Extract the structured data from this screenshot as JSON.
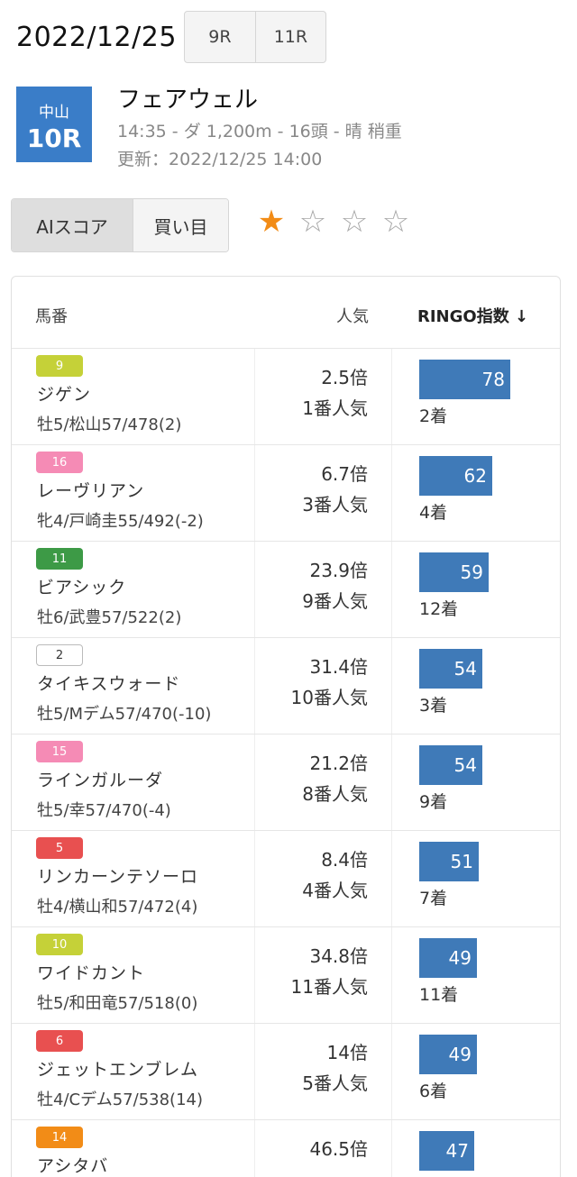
{
  "header": {
    "date": "2022/12/25",
    "prev_race": "9R",
    "next_race": "11R"
  },
  "race": {
    "venue": "中山",
    "number": "10R",
    "name": "フェアウェル",
    "meta": "14:35 - ダ 1,200m - 16頭 - 晴 稍重",
    "updated": "更新：2022/12/25 14:00"
  },
  "tabs": [
    {
      "label": "AIスコア",
      "active": true
    },
    {
      "label": "買い目",
      "active": false
    }
  ],
  "confidence": {
    "stars_on": 1,
    "stars_total": 4,
    "on_glyph": "★",
    "off_glyph": "☆"
  },
  "table": {
    "headers": {
      "horse": "馬番",
      "popularity": "人気",
      "score": "RINGO指数 ↓"
    },
    "score_max": 100,
    "rows": [
      {
        "number": "9",
        "color": "#c5d138",
        "name": "ジゲン",
        "info": "牡5/松山57/478(2)",
        "odds": "2.5倍",
        "pop": "1番人気",
        "score": 78,
        "finish": "2着"
      },
      {
        "number": "16",
        "color": "#f58bb5",
        "name": "レーヴリアン",
        "info": "牝4/戸崎圭55/492(-2)",
        "odds": "6.7倍",
        "pop": "3番人気",
        "score": 62,
        "finish": "4着"
      },
      {
        "number": "11",
        "color": "#3d9a46",
        "name": "ビアシック",
        "info": "牡6/武豊57/522(2)",
        "odds": "23.9倍",
        "pop": "9番人気",
        "score": 59,
        "finish": "12着"
      },
      {
        "number": "2",
        "color": "#ffffff",
        "name": "タイキスウォード",
        "info": "牡5/Mデム57/470(-10)",
        "odds": "31.4倍",
        "pop": "10番人気",
        "score": 54,
        "finish": "3着"
      },
      {
        "number": "15",
        "color": "#f58bb5",
        "name": "ラインガルーダ",
        "info": "牡5/幸57/470(-4)",
        "odds": "21.2倍",
        "pop": "8番人気",
        "score": 54,
        "finish": "9着"
      },
      {
        "number": "5",
        "color": "#e85050",
        "name": "リンカーンテソーロ",
        "info": "牡4/横山和57/472(4)",
        "odds": "8.4倍",
        "pop": "4番人気",
        "score": 51,
        "finish": "7着"
      },
      {
        "number": "10",
        "color": "#c5d138",
        "name": "ワイドカント",
        "info": "牡5/和田竜57/518(0)",
        "odds": "34.8倍",
        "pop": "11番人気",
        "score": 49,
        "finish": "11着"
      },
      {
        "number": "6",
        "color": "#e85050",
        "name": "ジェットエンブレム",
        "info": "牡4/Cデム57/538(14)",
        "odds": "14倍",
        "pop": "5番人気",
        "score": 49,
        "finish": "6着"
      },
      {
        "number": "14",
        "color": "#f28c17",
        "name": "アシタバ",
        "info": "",
        "odds": "46.5倍",
        "pop": "",
        "score": 47,
        "finish": ""
      }
    ]
  }
}
